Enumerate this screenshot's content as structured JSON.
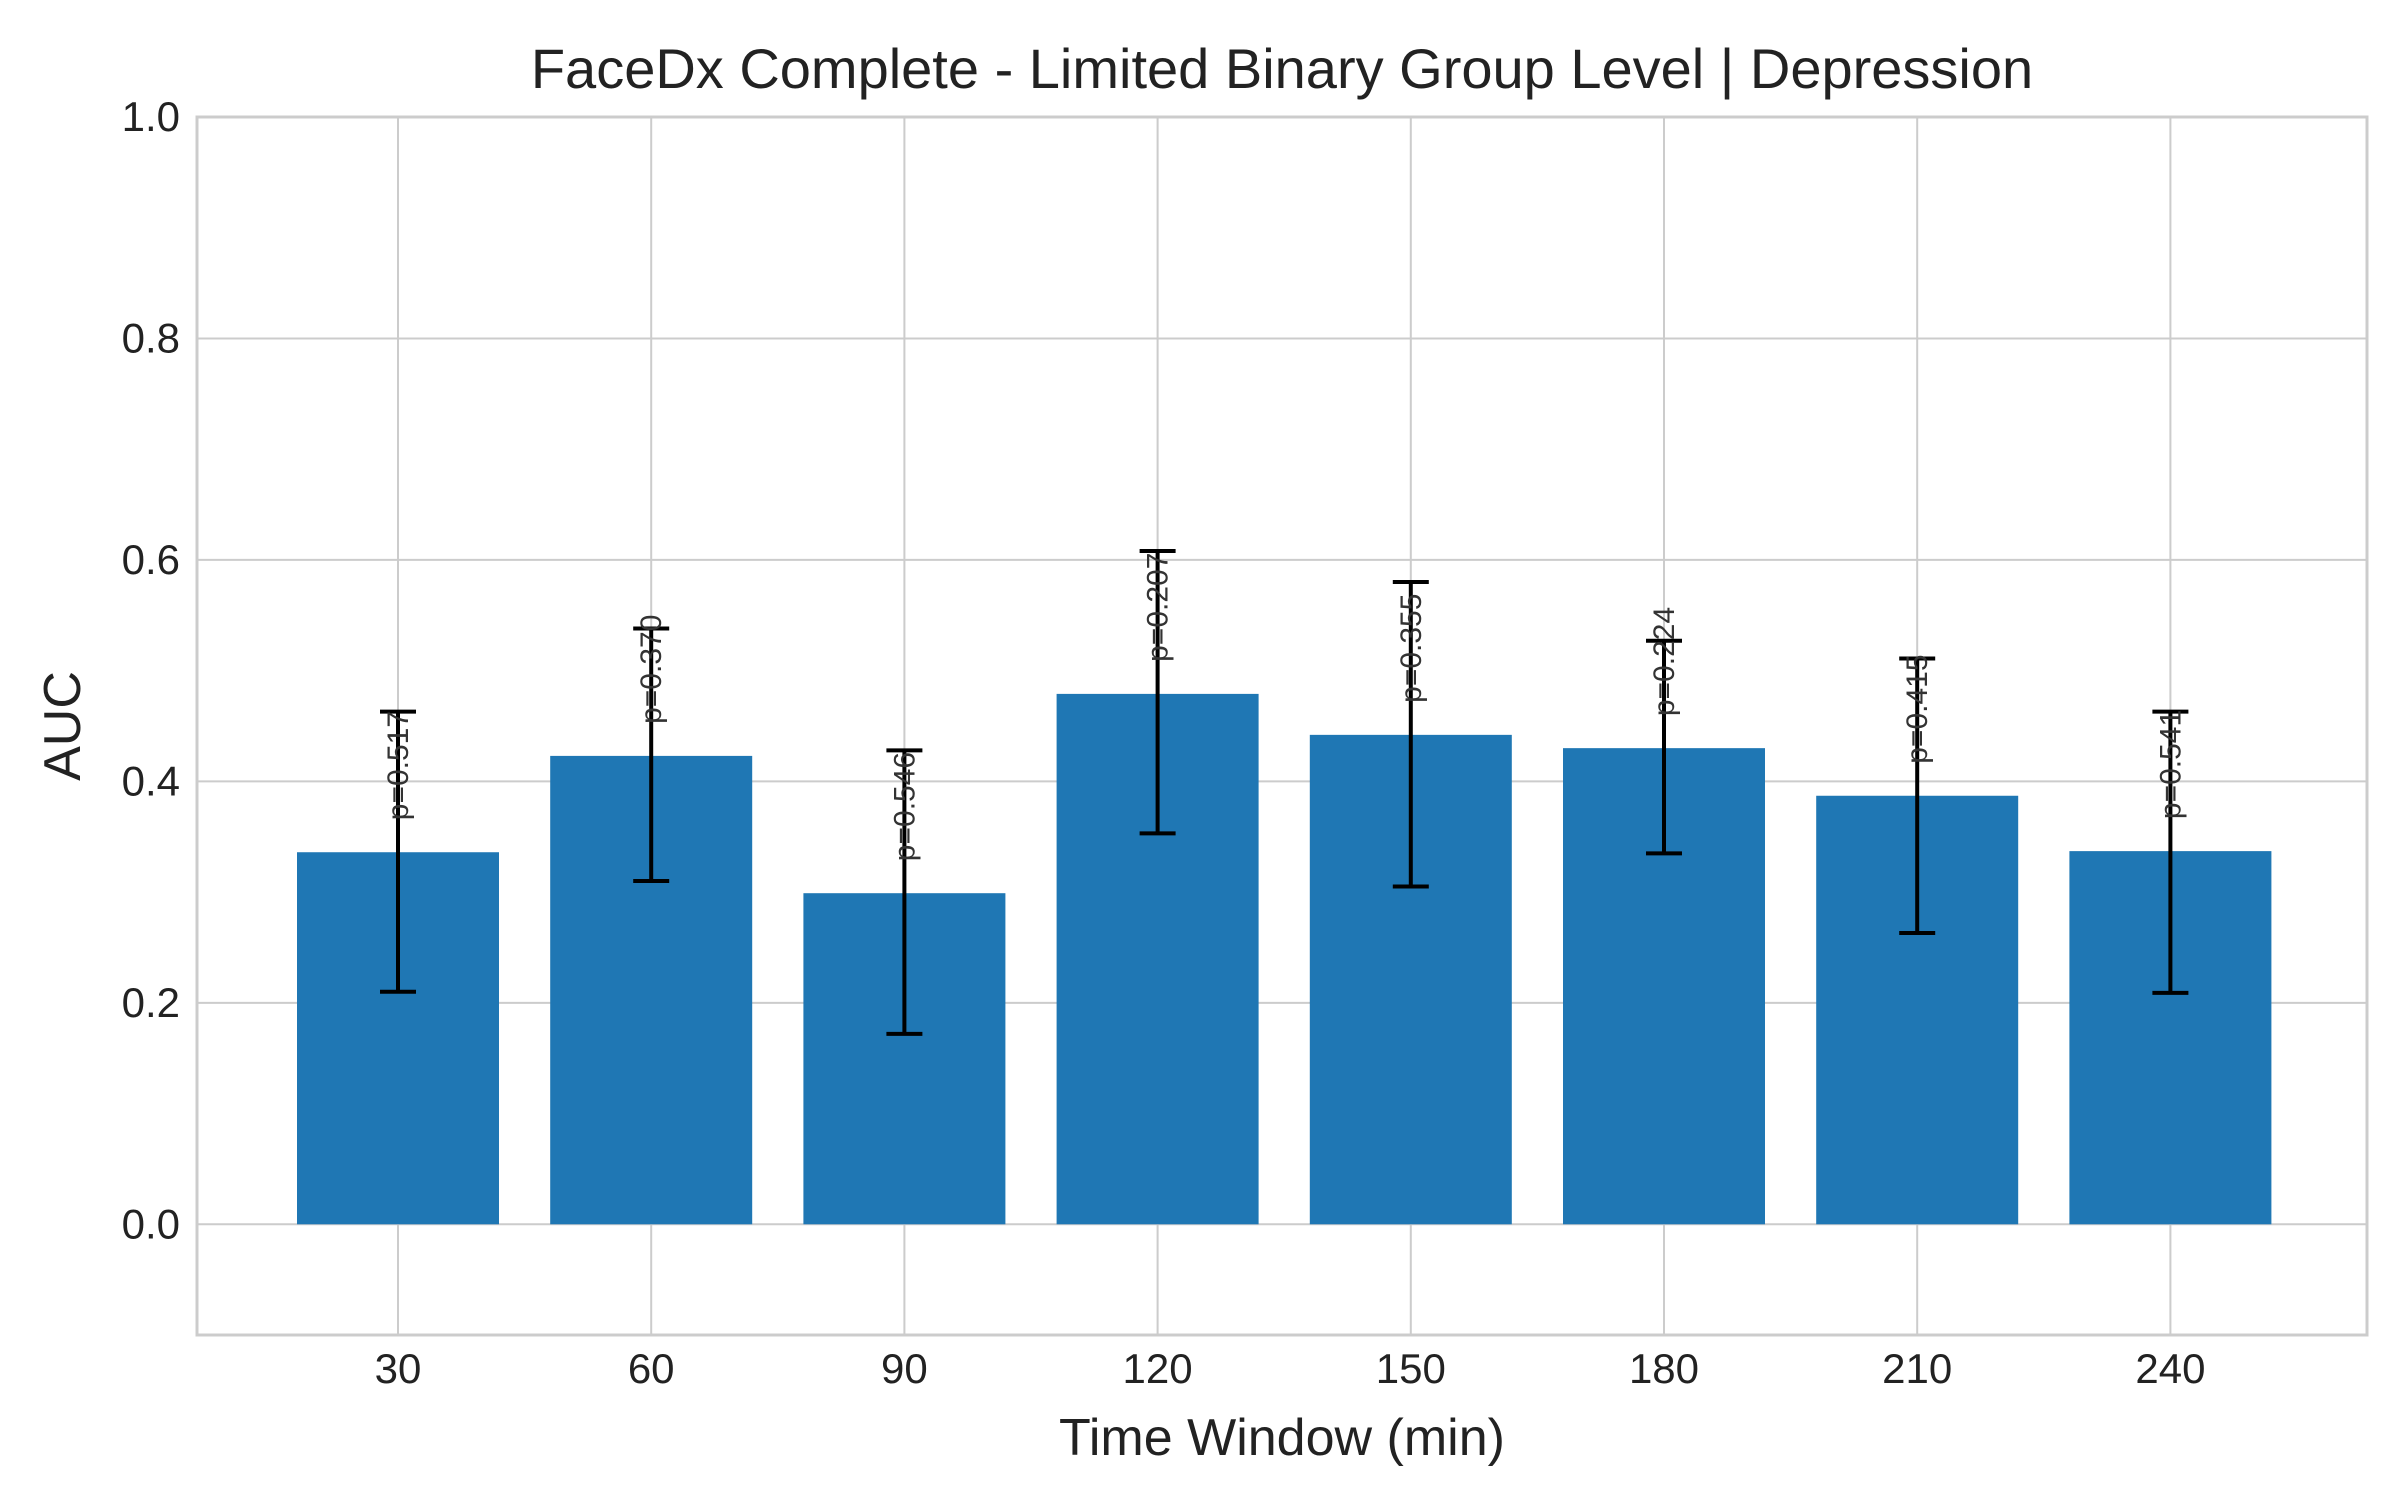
{
  "chart_data": {
    "type": "bar",
    "title": "FaceDx Complete - Limited Binary Group Level | Depression",
    "xlabel": "Time Window (min)",
    "ylabel": "AUC",
    "categories": [
      "30",
      "60",
      "90",
      "120",
      "150",
      "180",
      "210",
      "240"
    ],
    "values": [
      0.336,
      0.423,
      0.299,
      0.479,
      0.442,
      0.43,
      0.387,
      0.337
    ],
    "error_low": [
      0.21,
      0.31,
      0.172,
      0.353,
      0.305,
      0.335,
      0.263,
      0.209
    ],
    "error_high": [
      0.463,
      0.538,
      0.428,
      0.608,
      0.58,
      0.527,
      0.511,
      0.463
    ],
    "annotations": [
      "p=0.517",
      "p=0.370",
      "p=0.546",
      "p=0.207",
      "p=0.355",
      "p=0.224",
      "p=0.415",
      "p=0.541"
    ],
    "ylim": [
      -0.1,
      1.0
    ],
    "yticks": [
      "0.0",
      "0.2",
      "0.4",
      "0.6",
      "0.8",
      "1.0"
    ],
    "grid": true,
    "bar_color": "#1f77b4"
  }
}
